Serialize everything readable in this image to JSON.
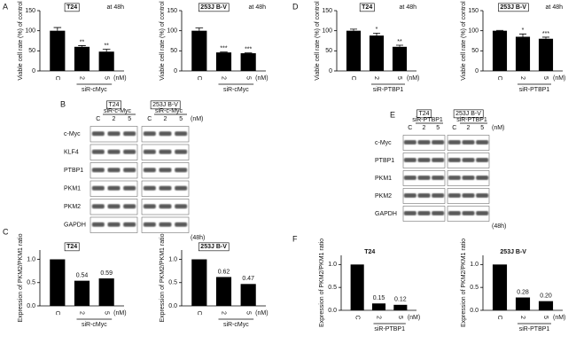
{
  "panel_letters": [
    "A",
    "B",
    "C",
    "D",
    "E",
    "F"
  ],
  "chart_data": [
    {
      "type": "bar",
      "title": "T24",
      "note": "at 48h",
      "ylabel": "Viable cell rate (%) of control",
      "categories": [
        "C",
        "2",
        "5"
      ],
      "unit": "(nM)",
      "group_label": "siR-cMyc",
      "values": [
        100,
        60,
        48
      ],
      "errors": [
        8,
        3,
        6
      ],
      "annotations": [
        null,
        "**",
        "**"
      ],
      "ylim": [
        0,
        150
      ],
      "yticks": [
        0,
        50,
        100,
        150
      ],
      "color": "#000000"
    },
    {
      "type": "bar",
      "title": "253J B-V",
      "note": "at 48h",
      "ylabel": "Viable cell rate (%) of control",
      "categories": [
        "C",
        "2",
        "5"
      ],
      "unit": "(nM)",
      "group_label": "siR-cMyc",
      "values": [
        100,
        46,
        44
      ],
      "errors": [
        7,
        1,
        1
      ],
      "annotations": [
        null,
        "***",
        "***"
      ],
      "ylim": [
        0,
        150
      ],
      "yticks": [
        0,
        50,
        100,
        150
      ],
      "color": "#000000"
    },
    {
      "type": "bar",
      "title": "T24",
      "note": "at 48h",
      "ylabel": "Viable cell rate (%) of control",
      "categories": [
        "C",
        "2",
        "5"
      ],
      "unit": "(nM)",
      "group_label": "siR-PTBP1",
      "values": [
        100,
        88,
        60
      ],
      "errors": [
        4,
        6,
        4
      ],
      "annotations": [
        null,
        "*",
        "**"
      ],
      "ylim": [
        0,
        150
      ],
      "yticks": [
        0,
        50,
        100,
        150
      ],
      "color": "#000000"
    },
    {
      "type": "bar",
      "title": "253J B-V",
      "note": "at 48h",
      "ylabel": "Viable cell rate (%) of control",
      "categories": [
        "C",
        "2",
        "5"
      ],
      "unit": "(nM)",
      "group_label": "siR-PTBP1",
      "values": [
        100,
        85,
        80
      ],
      "errors": [
        1,
        7,
        4
      ],
      "annotations": [
        null,
        "*",
        "***"
      ],
      "ylim": [
        0,
        150
      ],
      "yticks": [
        0,
        50,
        100,
        150
      ],
      "color": "#000000"
    },
    {
      "type": "bar",
      "title": "T24",
      "ylabel": "Expression of PKM2/PKM1 ratio",
      "categories": [
        "C",
        "2",
        "5"
      ],
      "unit": "(nM)",
      "group_label": "siR-cMyc",
      "values": [
        1,
        0.54,
        0.59
      ],
      "value_labels": [
        null,
        "0.54",
        "0.59"
      ],
      "ylim": [
        0,
        1.2
      ],
      "yticks": [
        {
          "value": 0,
          "label": "0.0"
        },
        {
          "value": 0.5,
          "label": "0.5"
        },
        {
          "value": 1,
          "label": "1.0"
        }
      ],
      "color": "#000000"
    },
    {
      "type": "bar",
      "title": "253J B-V",
      "ylabel": "Expression of PKM2/PKM1 ratio",
      "categories": [
        "C",
        "2",
        "5"
      ],
      "unit": "(nM)",
      "group_label": "siR-cMyc",
      "values": [
        1,
        0.62,
        0.47
      ],
      "value_labels": [
        null,
        "0.62",
        "0.47"
      ],
      "ylim": [
        0,
        1.2
      ],
      "yticks": [
        {
          "value": 0,
          "label": "0.0"
        },
        {
          "value": 0.5,
          "label": "0.5"
        },
        {
          "value": 1,
          "label": "1.0"
        }
      ],
      "color": "#000000"
    },
    {
      "type": "bar",
      "title": "T24",
      "ylabel": "Expression of PKM2/PKM1 ratio",
      "categories": [
        "C",
        "2",
        "5"
      ],
      "unit": "(nM)",
      "group_label": "siR-PTBP1",
      "values": [
        1,
        0.15,
        0.12
      ],
      "value_labels": [
        null,
        "0.15",
        "0.12"
      ],
      "ylim": [
        0,
        1.2
      ],
      "yticks": [
        {
          "value": 0,
          "label": "0.0"
        },
        {
          "value": 0.5,
          "label": "0.5"
        },
        {
          "value": 1,
          "label": "1.0"
        }
      ],
      "color": "#000000"
    },
    {
      "type": "bar",
      "title": "253J B-V",
      "ylabel": "Expression of PKM2/PKM1 ratio",
      "categories": [
        "C",
        "2",
        "5"
      ],
      "unit": "(nM)",
      "group_label": "siR-PTBP1",
      "values": [
        1,
        0.28,
        0.2
      ],
      "value_labels": [
        null,
        "0.28",
        "0.20"
      ],
      "ylim": [
        0,
        1.2
      ],
      "yticks": [
        {
          "value": 0,
          "label": "0.0"
        },
        {
          "value": 0.5,
          "label": "0.5"
        },
        {
          "value": 1,
          "label": "1.0"
        }
      ],
      "color": "#000000"
    }
  ],
  "blots": [
    {
      "cell_lines": [
        "T24",
        "253J B-V"
      ],
      "treatment": "siR-c-Myc",
      "lanes": [
        "C",
        "2",
        "5"
      ],
      "unit": "(nM)",
      "proteins": [
        "c-Myc",
        "KLF4",
        "PTBP1",
        "PKM1",
        "PKM2",
        "GAPDH"
      ],
      "time": "(48h)"
    },
    {
      "cell_lines": [
        "T24",
        "253J B-V"
      ],
      "treatment": "siR-PTBP1",
      "lanes": [
        "C",
        "2",
        "5"
      ],
      "unit": "(nM)",
      "proteins": [
        "c-Myc",
        "PTBP1",
        "PKM1",
        "PKM2",
        "GAPDH"
      ],
      "time": "(48h)"
    }
  ]
}
